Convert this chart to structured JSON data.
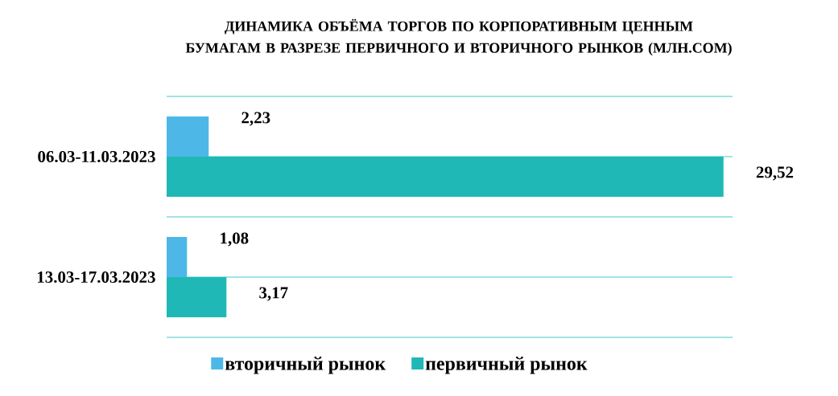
{
  "chart_data": {
    "type": "bar",
    "orientation": "horizontal",
    "title": "ДИНАМИКА ОБЪЁМА ТОРГОВ ПО КОРПОРАТИВНЫМ ЦЕННЫМ БУМАГАМ В РАЗРЕЗЕ ПЕРВИЧНОГО И ВТОРИЧНОГО РЫНКОВ (МЛН.СОМ)",
    "categories": [
      "06.03-11.03.2023",
      "13.03-17.03.2023"
    ],
    "series": [
      {
        "name": "вторичный рынок",
        "color": "#4db8e8",
        "values": [
          2.23,
          1.08
        ],
        "value_labels": [
          "2,23",
          "1,08"
        ]
      },
      {
        "name": "первичный рынок",
        "color": "#1fb8b6",
        "values": [
          29.52,
          3.17
        ],
        "value_labels": [
          "29,52",
          "3,17"
        ]
      }
    ],
    "xlim": [
      0,
      30
    ],
    "grid": "y",
    "legend": "bottom",
    "tick_labels": "y"
  }
}
